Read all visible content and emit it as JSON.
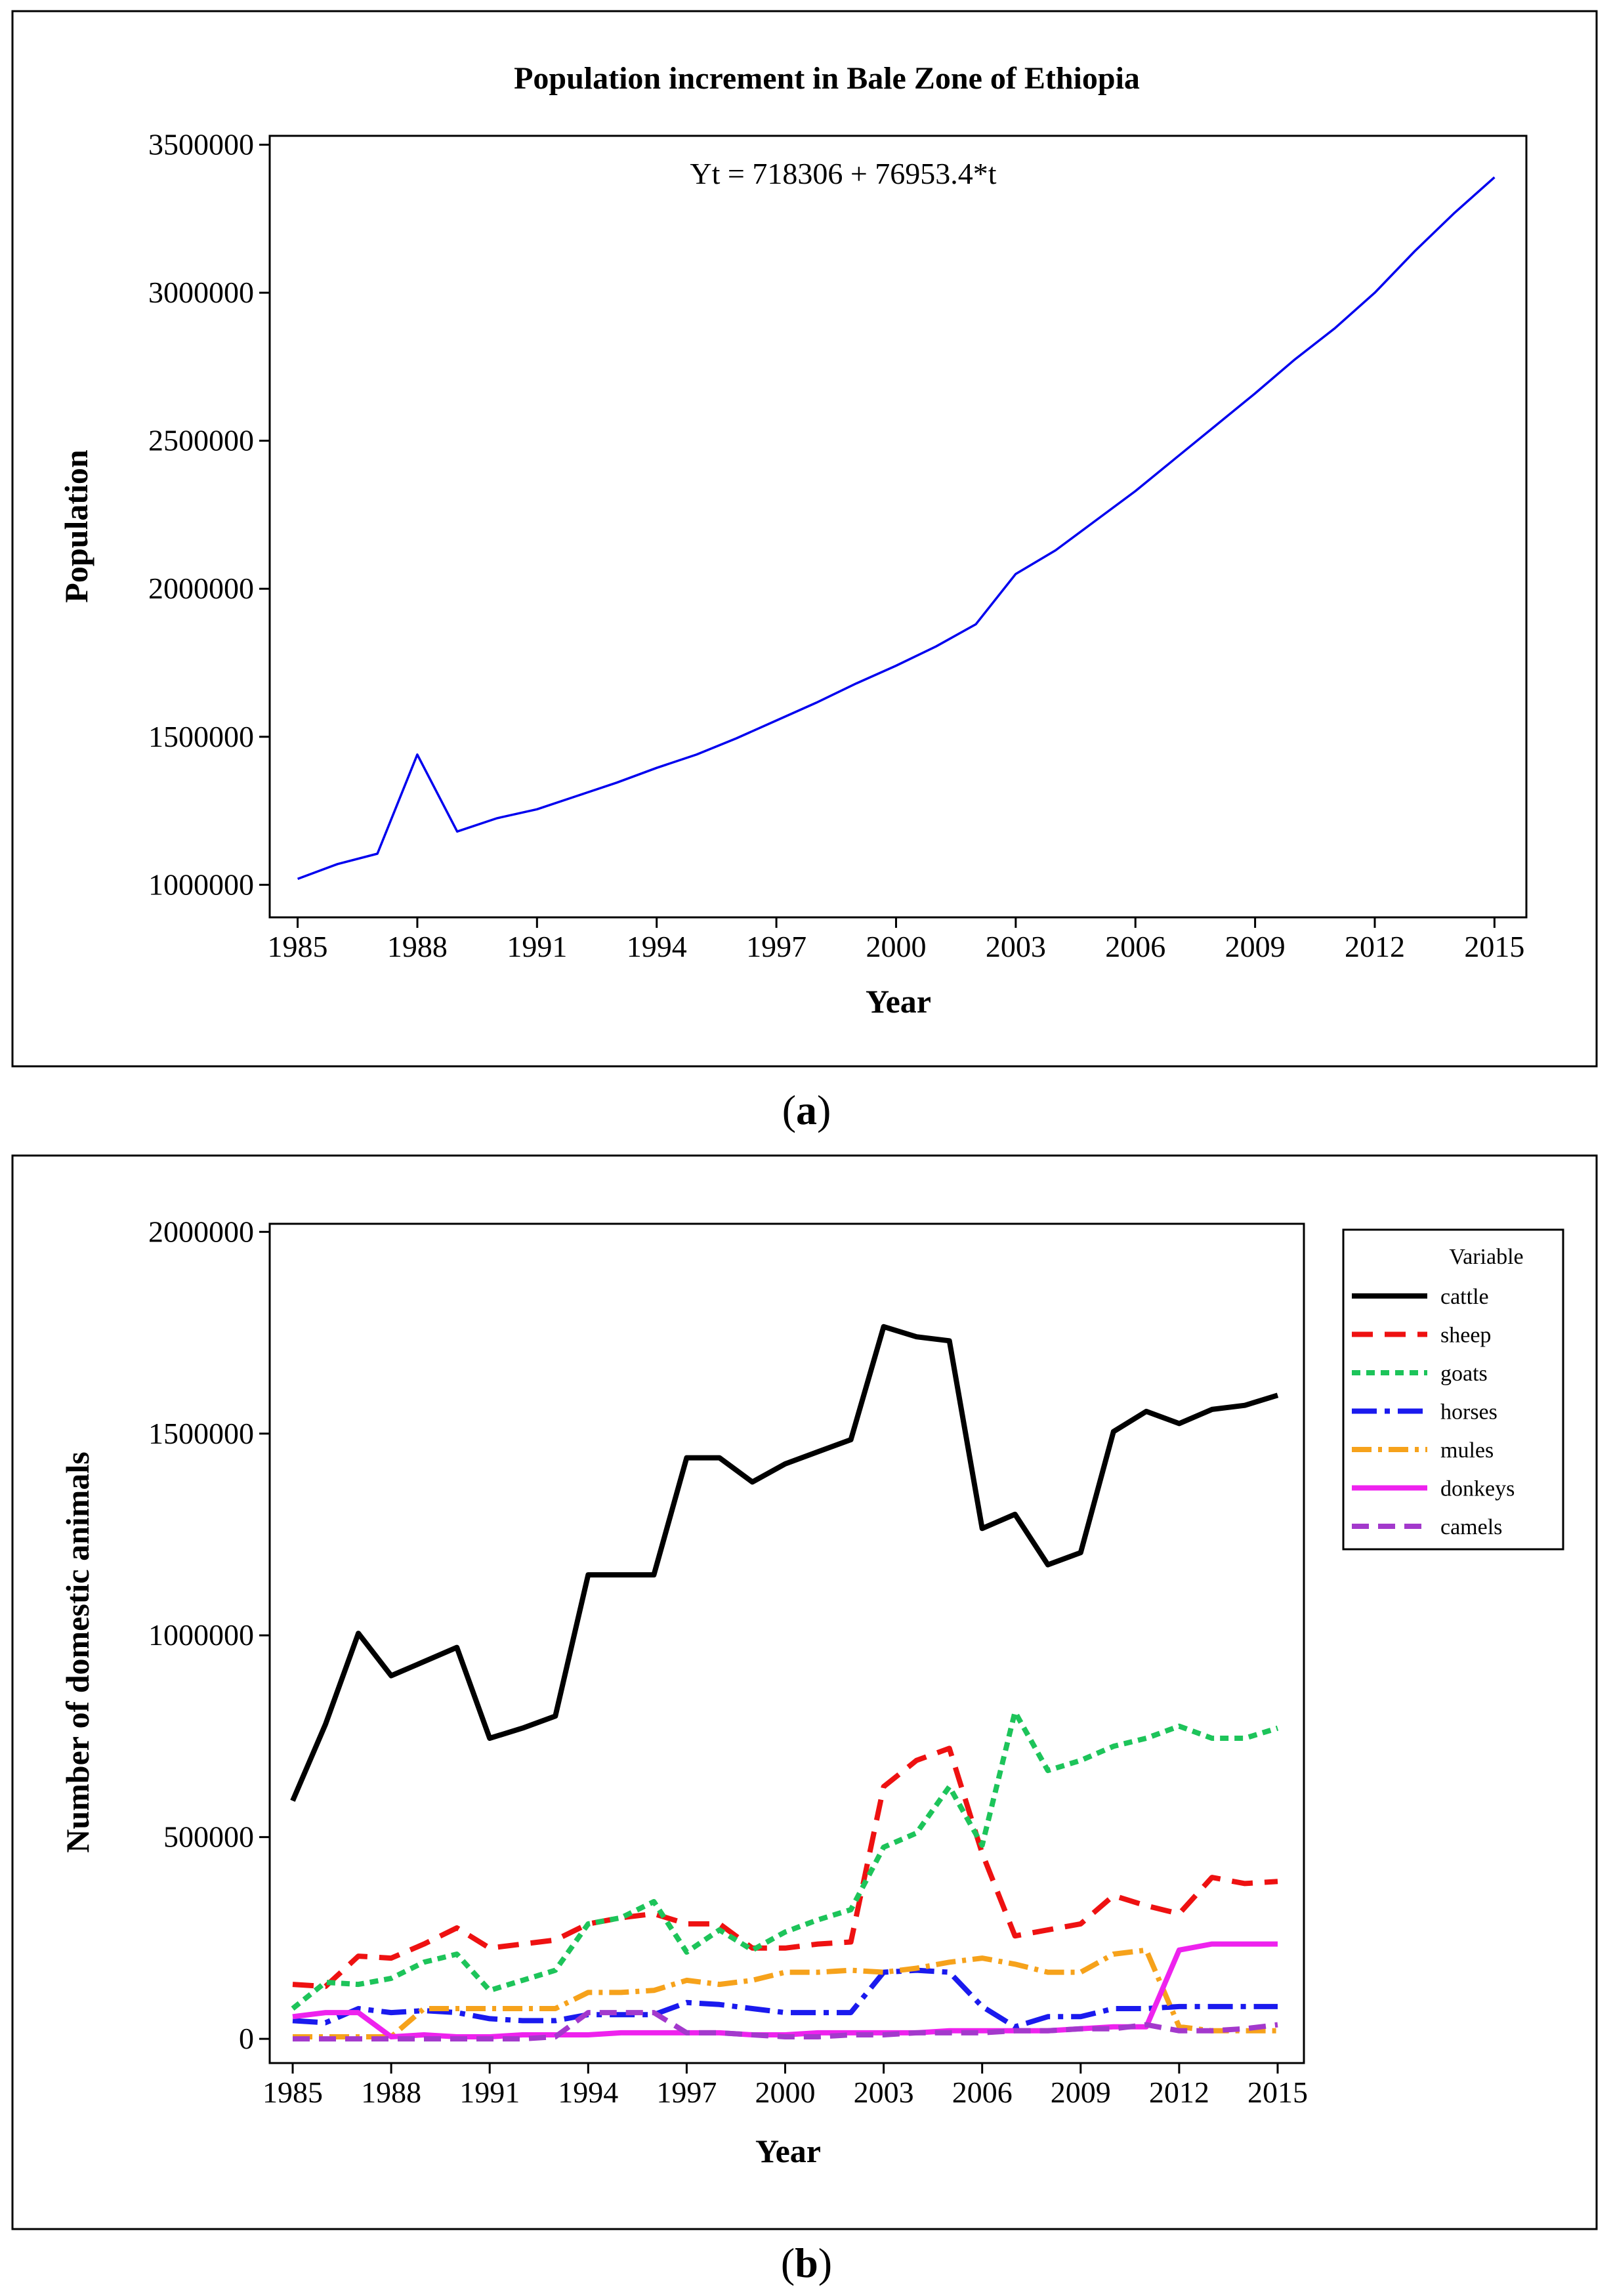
{
  "chart_data": [
    {
      "type": "line",
      "panel": "a",
      "caption_open": "(",
      "caption_letter": "a",
      "caption_close": ")",
      "title": "Population increment in Bale Zone of Ethiopia",
      "xlabel": "Year",
      "ylabel": "Population",
      "annotation": "Yt = 718306 + 76953.4*t",
      "xlim": [
        1984.3,
        2015.8
      ],
      "ylim": [
        890000,
        3530000
      ],
      "xticks": [
        1985,
        1988,
        1991,
        1994,
        1997,
        2000,
        2003,
        2006,
        2009,
        2012,
        2015
      ],
      "yticks": [
        1000000,
        1500000,
        2000000,
        2500000,
        3000000,
        3500000
      ],
      "series": [
        {
          "name": "Population",
          "color": "#0000ee",
          "x": [
            1985,
            1986,
            1987,
            1988,
            1989,
            1990,
            1991,
            1992,
            1993,
            1994,
            1995,
            1996,
            1997,
            1998,
            1999,
            2000,
            2001,
            2002,
            2003,
            2004,
            2005,
            2006,
            2007,
            2008,
            2009,
            2010,
            2011,
            2012,
            2013,
            2014,
            2015
          ],
          "values": [
            1020000,
            1070000,
            1105000,
            1440000,
            1180000,
            1225000,
            1255000,
            1300000,
            1345000,
            1395000,
            1440000,
            1495000,
            1555000,
            1615000,
            1680000,
            1740000,
            1805000,
            1880000,
            2050000,
            2130000,
            2230000,
            2330000,
            2440000,
            2550000,
            2660000,
            2775000,
            2880000,
            3000000,
            3140000,
            3270000,
            3390000
          ]
        }
      ]
    },
    {
      "type": "line",
      "panel": "b",
      "caption_open": "(",
      "caption_letter": "b",
      "caption_close": ")",
      "title": "",
      "xlabel": "Year",
      "ylabel": "Number of domestic animals",
      "legend_title": "Variable",
      "legend_position": "right",
      "xlim": [
        1984.3,
        2015.8
      ],
      "ylim": [
        -60000,
        2020000
      ],
      "xticks": [
        1985,
        1988,
        1991,
        1994,
        1997,
        2000,
        2003,
        2006,
        2009,
        2012,
        2015
      ],
      "yticks": [
        0,
        500000,
        1000000,
        1500000,
        2000000
      ],
      "x": [
        1985,
        1986,
        1987,
        1988,
        1989,
        1990,
        1991,
        1992,
        1993,
        1994,
        1995,
        1996,
        1997,
        1998,
        1999,
        2000,
        2001,
        2002,
        2003,
        2004,
        2005,
        2006,
        2007,
        2008,
        2009,
        2010,
        2011,
        2012,
        2013,
        2014,
        2015
      ],
      "series": [
        {
          "name": "cattle",
          "color": "#000000",
          "dash": "",
          "values": [
            590000,
            780000,
            1005000,
            900000,
            935000,
            970000,
            745000,
            770000,
            800000,
            1150000,
            1150000,
            1150000,
            1440000,
            1440000,
            1380000,
            1425000,
            1455000,
            1485000,
            1765000,
            1740000,
            1730000,
            1265000,
            1300000,
            1175000,
            1205000,
            1505000,
            1555000,
            1525000,
            1560000,
            1570000,
            1595000
          ]
        },
        {
          "name": "sheep",
          "color": "#ee1111",
          "dash": "32,18",
          "values": [
            135000,
            130000,
            205000,
            200000,
            235000,
            275000,
            225000,
            235000,
            245000,
            285000,
            300000,
            310000,
            285000,
            285000,
            225000,
            225000,
            235000,
            240000,
            625000,
            690000,
            720000,
            460000,
            255000,
            270000,
            285000,
            355000,
            330000,
            310000,
            400000,
            385000,
            390000
          ]
        },
        {
          "name": "goats",
          "color": "#1dc45a",
          "dash": "13,9",
          "values": [
            75000,
            140000,
            135000,
            150000,
            190000,
            210000,
            120000,
            145000,
            170000,
            285000,
            300000,
            340000,
            215000,
            270000,
            220000,
            265000,
            295000,
            320000,
            475000,
            510000,
            625000,
            480000,
            810000,
            665000,
            690000,
            725000,
            745000,
            775000,
            745000,
            745000,
            770000
          ]
        },
        {
          "name": "horses",
          "color": "#1a1aee",
          "dash": "38,12,8,12",
          "values": [
            45000,
            40000,
            75000,
            65000,
            70000,
            65000,
            50000,
            45000,
            45000,
            60000,
            60000,
            60000,
            90000,
            85000,
            75000,
            65000,
            65000,
            65000,
            165000,
            170000,
            165000,
            80000,
            30000,
            55000,
            55000,
            75000,
            75000,
            80000,
            80000,
            80000,
            80000
          ]
        },
        {
          "name": "mules",
          "color": "#f6a21b",
          "dash": "30,10,6,10",
          "values": [
            5000,
            5000,
            5000,
            5000,
            75000,
            75000,
            75000,
            75000,
            75000,
            115000,
            115000,
            120000,
            145000,
            135000,
            145000,
            165000,
            165000,
            170000,
            165000,
            175000,
            190000,
            200000,
            185000,
            165000,
            165000,
            210000,
            220000,
            30000,
            20000,
            20000,
            20000
          ]
        },
        {
          "name": "donkeys",
          "color": "#ee22ee",
          "dash": "",
          "values": [
            55000,
            65000,
            65000,
            5000,
            10000,
            5000,
            5000,
            10000,
            10000,
            10000,
            15000,
            15000,
            15000,
            15000,
            10000,
            10000,
            15000,
            15000,
            15000,
            15000,
            20000,
            20000,
            20000,
            20000,
            25000,
            30000,
            30000,
            220000,
            235000,
            235000,
            235000
          ]
        },
        {
          "name": "camels",
          "color": "#a339cc",
          "dash": "26,14",
          "values": [
            0,
            0,
            0,
            0,
            0,
            0,
            0,
            0,
            5000,
            65000,
            65000,
            65000,
            15000,
            15000,
            10000,
            5000,
            5000,
            10000,
            10000,
            15000,
            15000,
            15000,
            20000,
            20000,
            25000,
            25000,
            35000,
            20000,
            20000,
            25000,
            35000
          ]
        }
      ]
    }
  ]
}
